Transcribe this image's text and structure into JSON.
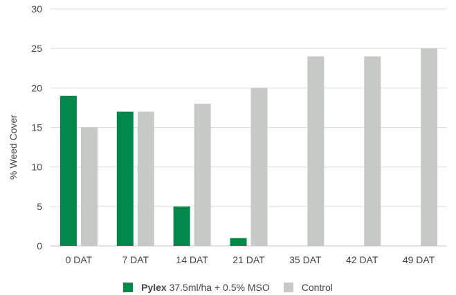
{
  "chart_data": {
    "type": "bar",
    "title": "",
    "xlabel": "",
    "ylabel": "% Weed Cover",
    "ylim": [
      0,
      30
    ],
    "yticks": [
      0,
      5,
      10,
      15,
      20,
      25,
      30
    ],
    "grid": true,
    "legend_position": "bottom",
    "categories": [
      "0 DAT",
      "7 DAT",
      "14 DAT",
      "21 DAT",
      "35 DAT",
      "42 DAT",
      "49 DAT"
    ],
    "series": [
      {
        "name": "Pylex 37.5ml/ha + 0.5% MSO",
        "name_bold": "Pylex",
        "name_rest": "37.5ml/ha + 0.5% MSO",
        "color": "#00884a",
        "values": [
          19,
          17,
          5,
          1,
          0,
          0,
          0
        ]
      },
      {
        "name": "Control",
        "color": "#c5cac7",
        "values": [
          15,
          17,
          18,
          20,
          24,
          24,
          25
        ]
      }
    ]
  }
}
